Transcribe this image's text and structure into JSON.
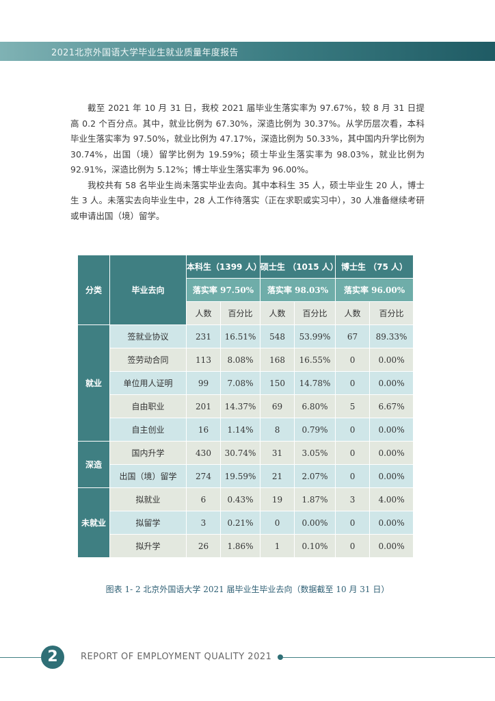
{
  "header": {
    "title": "2021北京外国语大学毕业生就业质量年度报告"
  },
  "paragraphs": [
    "截至 2021 年 10 月 31 日，我校 2021 届毕业生落实率为 97.67%，较 8 月 31 日提高 0.2 个百分点。其中，就业比例为 67.30%，深造比例为 30.37%。从学历层次看，本科毕业生落实率为 97.50%，就业比例为 47.17%，深造比例为 50.33%，其中国内升学比例为 30.74%，出国（境）留学比例为 19.59%；硕士毕业生落实率为 98.03%，就业比例为 92.91%，深造比例为 5.12%；博士毕业生落实率为 96.00%。",
    "我校共有 58 名毕业生尚未落实毕业去向。其中本科生 35 人，硕士毕业生 20 人，博士生 3 人。未落实去向毕业生中，28 人工作待落实（正在求职或实习中），30 人准备继续考研或申请出国（境）留学。"
  ],
  "table": {
    "category_header": "分类",
    "destination_header": "毕业去向",
    "levels": [
      {
        "name": "本科生（1399 人）",
        "rate": "落实率 97.50%"
      },
      {
        "name": "硕士生 （1015 人）",
        "rate": "落实率 98.03%"
      },
      {
        "name": "博士生 （75 人）",
        "rate": "落实率 96.00%"
      }
    ],
    "sub_headers": [
      "人数",
      "百分比",
      "人数",
      "百分比",
      "人数",
      "百分比"
    ],
    "groups": [
      {
        "name": "就业",
        "rows": [
          [
            "签就业协议",
            231,
            "16.51%",
            548,
            "53.99%",
            67,
            "89.33%"
          ],
          [
            "签劳动合同",
            113,
            "8.08%",
            168,
            "16.55%",
            0,
            "0.00%"
          ],
          [
            "单位用人证明",
            99,
            "7.08%",
            150,
            "14.78%",
            0,
            "0.00%"
          ],
          [
            "自由职业",
            201,
            "14.37%",
            69,
            "6.80%",
            5,
            "6.67%"
          ],
          [
            "自主创业",
            16,
            "1.14%",
            8,
            "0.79%",
            0,
            "0.00%"
          ]
        ]
      },
      {
        "name": "深造",
        "rows": [
          [
            "国内升学",
            430,
            "30.74%",
            31,
            "3.05%",
            0,
            "0.00%"
          ],
          [
            "出国（境）留学",
            274,
            "19.59%",
            21,
            "2.07%",
            0,
            "0.00%"
          ]
        ]
      },
      {
        "name": "未就业",
        "rows": [
          [
            "拟就业",
            6,
            "0.43%",
            19,
            "1.87%",
            3,
            "4.00%"
          ],
          [
            "拟留学",
            3,
            "0.21%",
            0,
            "0.00%",
            0,
            "0.00%"
          ],
          [
            "拟升学",
            26,
            "1.86%",
            1,
            "0.10%",
            0,
            "0.00%"
          ]
        ]
      }
    ]
  },
  "caption": "图表 1- 2 北京外国语大学 2021 届毕业生毕业去向（数据截至 10 月 31 日）",
  "footer": {
    "page_number": "2",
    "text": "REPORT OF EMPLOYMENT QUALITY 2021"
  }
}
